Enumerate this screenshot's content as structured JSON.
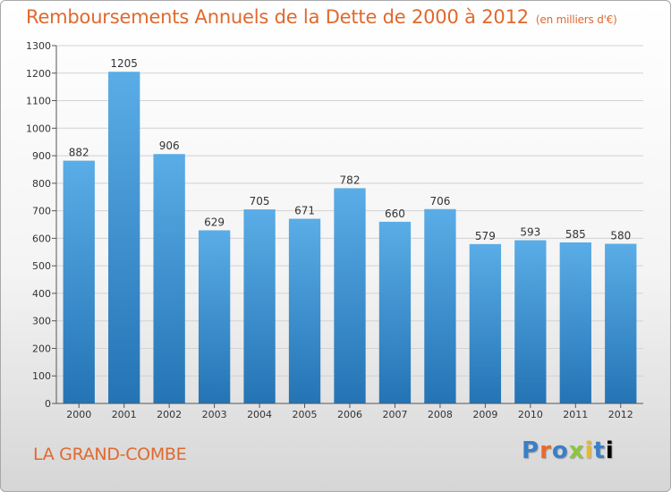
{
  "chart_data": {
    "type": "bar",
    "title": "Remboursements Annuels de la Dette de 2000 à 2012",
    "unit_note": "(en milliers d'€)",
    "categories": [
      "2000",
      "2001",
      "2002",
      "2003",
      "2004",
      "2005",
      "2006",
      "2007",
      "2008",
      "2009",
      "2010",
      "2011",
      "2012"
    ],
    "values": [
      882,
      1205,
      906,
      629,
      705,
      671,
      782,
      660,
      706,
      579,
      593,
      585,
      580
    ],
    "ylim": [
      0,
      1300
    ],
    "yticks": [
      0,
      100,
      200,
      300,
      400,
      500,
      600,
      700,
      800,
      900,
      1000,
      1100,
      1200,
      1300
    ],
    "grid": true,
    "bar_color_top": "#5aade6",
    "bar_color_bottom": "#2474b5"
  },
  "footer": {
    "commune": "LA GRAND-COMBE",
    "logo_text": [
      "P",
      "r",
      "o",
      "x",
      "i",
      "t",
      "i"
    ]
  }
}
